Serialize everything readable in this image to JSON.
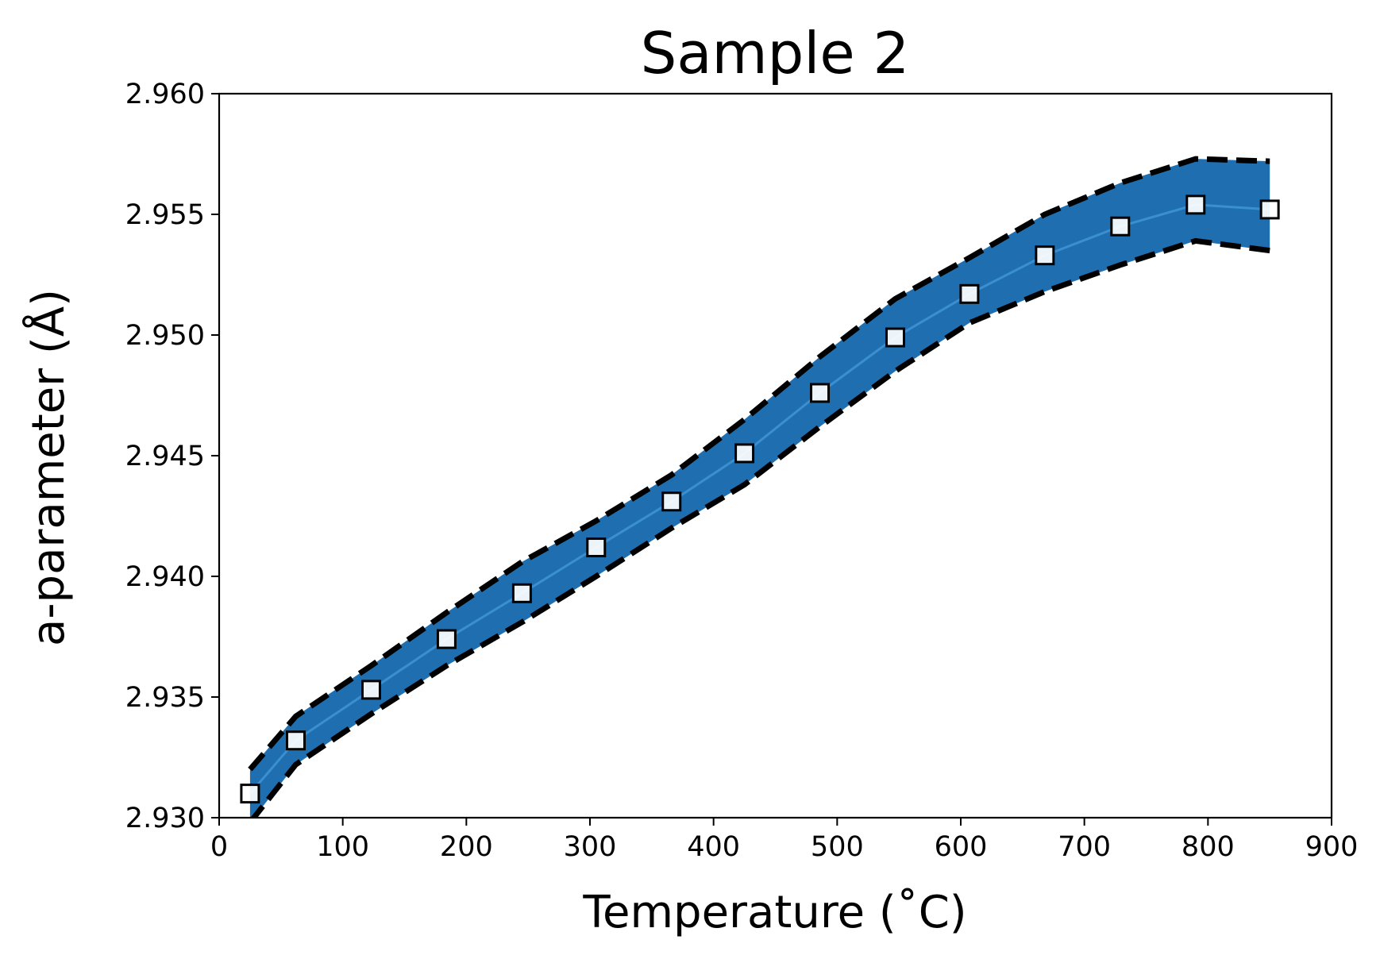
{
  "chart_data": {
    "type": "line",
    "title": "Sample 2",
    "xlabel": "Temperature (˚C)",
    "ylabel": "a-parameter (Å)",
    "xlim": [
      0,
      900
    ],
    "ylim": [
      2.93,
      2.96
    ],
    "xticks": [
      "0",
      "100",
      "200",
      "300",
      "400",
      "500",
      "600",
      "700",
      "800",
      "900"
    ],
    "yticks": [
      "2.930",
      "2.935",
      "2.940",
      "2.945",
      "2.950",
      "2.955",
      "2.960"
    ],
    "grid": false,
    "colors": {
      "band": "#1f6fb0",
      "line": "#3a8fd0",
      "bound": "#000000",
      "marker_face": "#ffffff",
      "marker_edge": "#000000"
    },
    "series": [
      {
        "marker": "square",
        "x": [
          25,
          62,
          123,
          184,
          245,
          305,
          366,
          425,
          486,
          547,
          607,
          668,
          729,
          790,
          850
        ],
        "y": [
          2.931,
          2.9332,
          2.9353,
          2.9374,
          2.9393,
          2.9412,
          2.9431,
          2.9451,
          2.9476,
          2.9499,
          2.9517,
          2.9533,
          2.9545,
          2.9554,
          2.9552
        ]
      },
      {
        "style": "dashed",
        "x": [
          25,
          62,
          123,
          184,
          245,
          305,
          366,
          425,
          486,
          547,
          607,
          668,
          729,
          790,
          850
        ],
        "y": [
          2.932,
          2.9342,
          2.9363,
          2.9385,
          2.9406,
          2.9423,
          2.9442,
          2.9465,
          2.9491,
          2.9515,
          2.9532,
          2.955,
          2.9563,
          2.9573,
          2.9572
        ]
      },
      {
        "style": "dashed",
        "x": [
          25,
          62,
          123,
          184,
          245,
          305,
          366,
          425,
          486,
          547,
          607,
          668,
          729,
          790,
          850
        ],
        "y": [
          2.9298,
          2.9322,
          2.9343,
          2.9363,
          2.9381,
          2.94,
          2.942,
          2.9438,
          2.9462,
          2.9485,
          2.9505,
          2.9518,
          2.9529,
          2.9539,
          2.9535
        ]
      }
    ]
  }
}
